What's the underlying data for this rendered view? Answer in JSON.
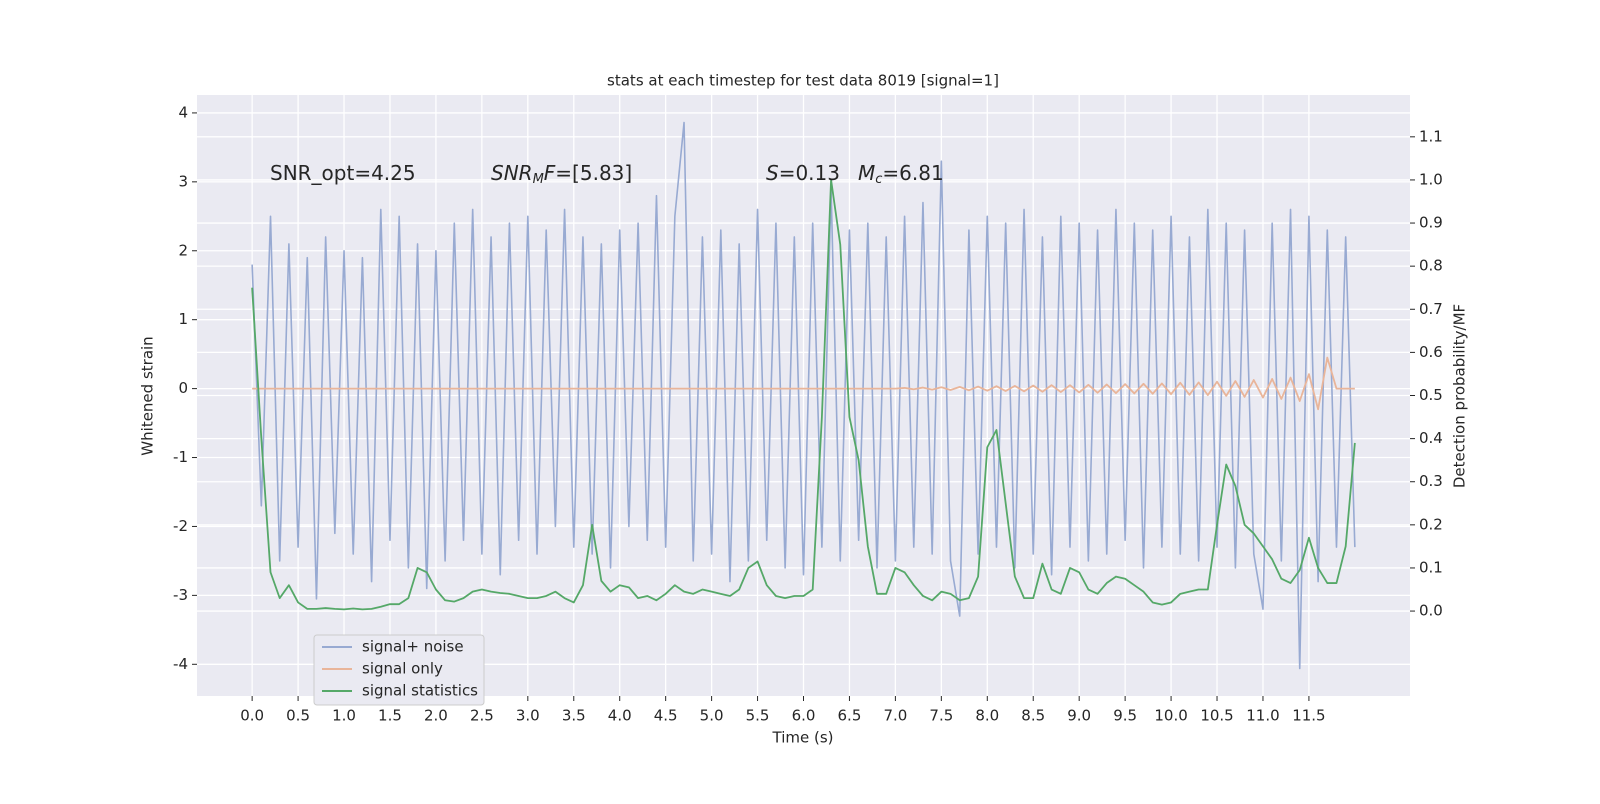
{
  "chart_data": {
    "type": "line",
    "title": "stats at each timestep for test data 8019 [signal=1]",
    "xlabel": "Time (s)",
    "ylabel": "Whitened strain",
    "y2label": "Detection probability/MF",
    "annotations": [
      [
        "SNR_opt=4.25"
      ],
      [
        "SNR",
        "M",
        "F",
        "=[5.83]"
      ],
      [
        "S",
        "=0.13"
      ],
      [
        "M",
        "c",
        "=6.81"
      ]
    ],
    "x": [
      0,
      0.1,
      0.2,
      0.3,
      0.4,
      0.5,
      0.6,
      0.7,
      0.8,
      0.9,
      1,
      1.1,
      1.2,
      1.3,
      1.4,
      1.5,
      1.6,
      1.7,
      1.8,
      1.9,
      2,
      2.1,
      2.2,
      2.3,
      2.4,
      2.5,
      2.6,
      2.7,
      2.8,
      2.9,
      3,
      3.1,
      3.2,
      3.3,
      3.4,
      3.5,
      3.6,
      3.7,
      3.8,
      3.9,
      4,
      4.1,
      4.2,
      4.3,
      4.4,
      4.5,
      4.6,
      4.7,
      4.8,
      4.9,
      5,
      5.1,
      5.2,
      5.3,
      5.4,
      5.5,
      5.6,
      5.7,
      5.8,
      5.9,
      6,
      6.1,
      6.2,
      6.3,
      6.4,
      6.5,
      6.6,
      6.7,
      6.8,
      6.9,
      7,
      7.1,
      7.2,
      7.3,
      7.4,
      7.5,
      7.6,
      7.7,
      7.8,
      7.9,
      8,
      8.1,
      8.2,
      8.3,
      8.4,
      8.5,
      8.6,
      8.7,
      8.8,
      8.9,
      9,
      9.1,
      9.2,
      9.3,
      9.4,
      9.5,
      9.6,
      9.7,
      9.8,
      9.9,
      10,
      10.1,
      10.2,
      10.3,
      10.4,
      10.5,
      10.6,
      10.7,
      10.8,
      10.9,
      11,
      11.1,
      11.2,
      11.3,
      11.4,
      11.5,
      11.6,
      11.7,
      11.8,
      11.9,
      12
    ],
    "series": [
      {
        "name": "signal+ noise",
        "color": "#98aad2",
        "values": [
          1.8,
          -1.7,
          2.5,
          -2.5,
          2.1,
          -2.3,
          1.9,
          -3.05,
          2.2,
          -2.1,
          2.0,
          -2.4,
          1.9,
          -2.8,
          2.6,
          -2.2,
          2.5,
          -2.6,
          2.1,
          -2.9,
          2.0,
          -2.5,
          2.4,
          -2.2,
          2.6,
          -2.4,
          2.2,
          -2.7,
          2.4,
          -2.2,
          2.5,
          -2.4,
          2.3,
          -2.0,
          2.6,
          -2.3,
          2.2,
          -2.4,
          2.1,
          -2.6,
          2.3,
          -2.0,
          2.4,
          -2.2,
          2.8,
          -2.3,
          2.5,
          3.86,
          -2.5,
          2.2,
          -2.4,
          2.3,
          -2.8,
          2.1,
          -2.5,
          2.6,
          -2.2,
          2.4,
          -2.6,
          2.2,
          -2.7,
          2.4,
          -2.3,
          2.9,
          -2.5,
          2.3,
          -2.2,
          2.4,
          -2.6,
          2.2,
          -2.5,
          2.5,
          -2.3,
          2.7,
          -2.4,
          3.3,
          -2.5,
          -3.3,
          2.3,
          -2.4,
          2.5,
          -2.3,
          2.4,
          -2.6,
          2.6,
          -2.4,
          2.2,
          -2.7,
          2.5,
          -2.3,
          2.4,
          -2.5,
          2.3,
          -2.4,
          2.6,
          -2.2,
          2.4,
          -2.6,
          2.3,
          -2.3,
          2.5,
          -2.4,
          2.2,
          -2.5,
          2.6,
          -2.3,
          2.4,
          -2.6,
          2.3,
          -2.4,
          -3.2,
          2.4,
          -2.5,
          2.6,
          -4.06,
          2.5,
          -2.8,
          2.3,
          -2.3,
          2.2,
          -2.3
        ]
      },
      {
        "name": "signal only",
        "color": "#e9b59a",
        "values": [
          0,
          0,
          0,
          0,
          0,
          0,
          0,
          0,
          0,
          0,
          0,
          0,
          0,
          0,
          0,
          0,
          0,
          0,
          0,
          0,
          0,
          0,
          0,
          0,
          0,
          0,
          0,
          0,
          0,
          0,
          0,
          0,
          0,
          0,
          0,
          0,
          0,
          0,
          0,
          0,
          0,
          0,
          0,
          0,
          0,
          0,
          0,
          0,
          0,
          0,
          0,
          0,
          0,
          0,
          0,
          0,
          0,
          0,
          0,
          0,
          0,
          0,
          0,
          0,
          0,
          0,
          0,
          0,
          0,
          0,
          0,
          0.01,
          -0.01,
          0.015,
          -0.015,
          0.02,
          -0.02,
          0.025,
          -0.025,
          0.03,
          -0.03,
          0.035,
          -0.035,
          0.04,
          -0.04,
          0.045,
          -0.045,
          0.05,
          -0.05,
          0.05,
          -0.055,
          0.055,
          -0.06,
          0.06,
          -0.065,
          0.065,
          -0.07,
          0.07,
          -0.075,
          0.075,
          -0.08,
          0.085,
          -0.09,
          0.09,
          -0.095,
          0.1,
          -0.105,
          0.11,
          -0.12,
          0.125,
          -0.13,
          0.14,
          -0.15,
          0.16,
          -0.18,
          0.21,
          -0.3,
          0.45,
          0,
          0,
          0
        ]
      },
      {
        "name": "signal statistics",
        "color": "#55a868",
        "axis": "y2",
        "values": [
          0.75,
          0.4,
          0.09,
          0.03,
          0.06,
          0.02,
          0.005,
          0.005,
          0.007,
          0.005,
          0.004,
          0.006,
          0.004,
          0.005,
          0.01,
          0.016,
          0.016,
          0.03,
          0.1,
          0.09,
          0.05,
          0.025,
          0.022,
          0.03,
          0.045,
          0.05,
          0.045,
          0.042,
          0.04,
          0.035,
          0.03,
          0.03,
          0.035,
          0.045,
          0.03,
          0.02,
          0.06,
          0.2,
          0.07,
          0.045,
          0.06,
          0.055,
          0.03,
          0.035,
          0.025,
          0.04,
          0.06,
          0.045,
          0.04,
          0.05,
          0.045,
          0.04,
          0.035,
          0.05,
          0.1,
          0.115,
          0.06,
          0.035,
          0.03,
          0.035,
          0.035,
          0.05,
          0.45,
          1.0,
          0.85,
          0.45,
          0.35,
          0.15,
          0.04,
          0.04,
          0.1,
          0.09,
          0.06,
          0.035,
          0.025,
          0.045,
          0.04,
          0.025,
          0.03,
          0.08,
          0.38,
          0.42,
          0.25,
          0.08,
          0.03,
          0.03,
          0.11,
          0.05,
          0.04,
          0.1,
          0.09,
          0.05,
          0.04,
          0.065,
          0.08,
          0.075,
          0.06,
          0.045,
          0.02,
          0.015,
          0.02,
          0.04,
          0.045,
          0.05,
          0.05,
          0.2,
          0.34,
          0.29,
          0.2,
          0.18,
          0.15,
          0.12,
          0.075,
          0.065,
          0.095,
          0.17,
          0.1,
          0.065,
          0.065,
          0.15,
          0.39
        ]
      }
    ],
    "xlim": [
      -0.6,
      12.6
    ],
    "ylim": [
      -4.46,
      4.26
    ],
    "y2lim": [
      -0.197,
      1.197
    ],
    "xticks": [
      {
        "value": 0,
        "label": "0.0"
      },
      {
        "value": 0.5,
        "label": "0.5"
      },
      {
        "value": 1,
        "label": "1.0"
      },
      {
        "value": 1.5,
        "label": "1.5"
      },
      {
        "value": 2,
        "label": "2.0"
      },
      {
        "value": 2.5,
        "label": "2.5"
      },
      {
        "value": 3,
        "label": "3.0"
      },
      {
        "value": 3.5,
        "label": "3.5"
      },
      {
        "value": 4,
        "label": "4.0"
      },
      {
        "value": 4.5,
        "label": "4.5"
      },
      {
        "value": 5,
        "label": "5.0"
      },
      {
        "value": 5.5,
        "label": "5.5"
      },
      {
        "value": 6,
        "label": "6.0"
      },
      {
        "value": 6.5,
        "label": "6.5"
      },
      {
        "value": 7,
        "label": "7.0"
      },
      {
        "value": 7.5,
        "label": "7.5"
      },
      {
        "value": 8,
        "label": "8.0"
      },
      {
        "value": 8.5,
        "label": "8.5"
      },
      {
        "value": 9,
        "label": "9.0"
      },
      {
        "value": 9.5,
        "label": "9.5"
      },
      {
        "value": 10,
        "label": "10.0"
      },
      {
        "value": 10.5,
        "label": "10.5"
      },
      {
        "value": 11,
        "label": "11.0"
      },
      {
        "value": 11.5,
        "label": "11.5"
      }
    ],
    "yticks": [
      -4,
      -3,
      -2,
      -1,
      0,
      1,
      2,
      3,
      4
    ],
    "y2ticks": [
      {
        "value": 0,
        "label": "0.0"
      },
      {
        "value": 0.1,
        "label": "0.1"
      },
      {
        "value": 0.2,
        "label": "0.2"
      },
      {
        "value": 0.3,
        "label": "0.3"
      },
      {
        "value": 0.4,
        "label": "0.4"
      },
      {
        "value": 0.5,
        "label": "0.5"
      },
      {
        "value": 0.6,
        "label": "0.6"
      },
      {
        "value": 0.7,
        "label": "0.7"
      },
      {
        "value": 0.8,
        "label": "0.8"
      },
      {
        "value": 0.9,
        "label": "0.9"
      },
      {
        "value": 1,
        "label": "1.0"
      },
      {
        "value": 1.1,
        "label": "1.1"
      }
    ],
    "grid": true,
    "legend": "lower left"
  }
}
